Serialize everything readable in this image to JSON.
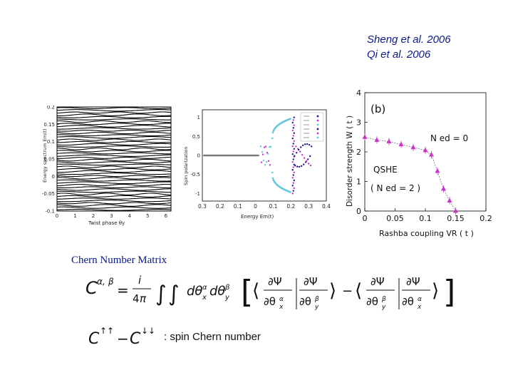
{
  "references": [
    "Sheng et al. 2006",
    "Qi et al. 2006"
  ],
  "chern_title": "Chern Number Matrix",
  "spin_chern_label": ": spin Chern number",
  "colors": {
    "text_blue": "#0a1a8a",
    "magenta": "#cc33cc",
    "cyan": "#66c8dc",
    "navy": "#1a1a8c",
    "grey_line": "#777777"
  },
  "chart_data": [
    {
      "type": "line",
      "xlabel": "Twist phase θy",
      "ylabel": "Energy spectrum Em(t)",
      "x_ticks": [
        "0",
        "1",
        "2",
        "3",
        "4",
        "5",
        "6"
      ],
      "y_ticks": [
        "0.2",
        "0.15",
        "0.1",
        "0.05",
        "0",
        "-0.05",
        "-0.1"
      ],
      "xlim": [
        0,
        6.28
      ],
      "ylim": [
        -0.1,
        0.2
      ]
    },
    {
      "type": "scatter",
      "xlabel": "Energy Em(t)",
      "ylabel": "Spin polarization",
      "x_ticks": [
        "0.3",
        "0.2",
        "0.1",
        "0",
        "0.1",
        "0.2",
        "0.3",
        "0.4"
      ],
      "y_ticks": [
        "1",
        "0.5",
        "0",
        "-0.5",
        "-1"
      ],
      "xlim": [
        -0.3,
        0.4
      ],
      "ylim": [
        -1.2,
        1.2
      ]
    },
    {
      "type": "line",
      "panel_label": "(b)",
      "xlabel": "Rashba coupling  VR ( t )",
      "ylabel": "Disorder strength  W ( t )",
      "x_ticks": [
        "0",
        "0.05",
        "0.1",
        "0.15",
        "0.2"
      ],
      "y_ticks": [
        "0",
        "1",
        "2",
        "3",
        "4"
      ],
      "xlim": [
        0,
        0.2
      ],
      "ylim": [
        0,
        4
      ],
      "annotations": [
        "N ed = 0",
        "QSHE",
        "( N ed = 2 )"
      ],
      "series": [
        {
          "x": [
            0,
            0.02,
            0.04,
            0.06,
            0.08,
            0.1,
            0.11,
            0.12,
            0.13,
            0.14,
            0.15
          ],
          "y": [
            2.5,
            2.4,
            2.35,
            2.25,
            2.15,
            2.05,
            1.9,
            1.35,
            0.75,
            0.35,
            0.0
          ]
        }
      ]
    }
  ]
}
